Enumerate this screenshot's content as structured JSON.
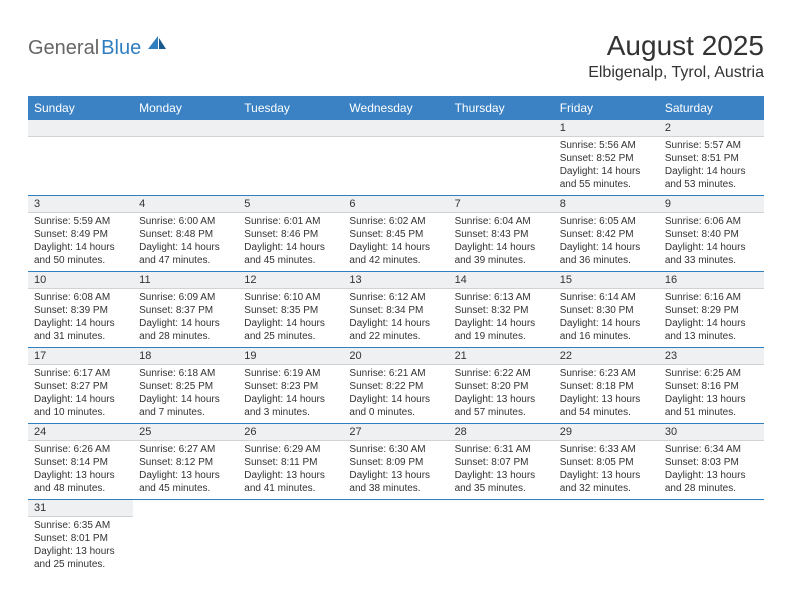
{
  "header": {
    "logo_general": "General",
    "logo_blue": "Blue",
    "month_title": "August 2025",
    "location": "Elbigenalp, Tyrol, Austria"
  },
  "colors": {
    "header_bg": "#3b82c4",
    "header_text": "#ffffff",
    "daynum_bg": "#eef0f2",
    "divider": "#2f7ec0",
    "text": "#333333",
    "logo_blue": "#2f7ec0"
  },
  "day_headers": [
    "Sunday",
    "Monday",
    "Tuesday",
    "Wednesday",
    "Thursday",
    "Friday",
    "Saturday"
  ],
  "weeks": [
    [
      null,
      null,
      null,
      null,
      null,
      {
        "n": "1",
        "sr": "5:56 AM",
        "ss": "8:52 PM",
        "dl": "14 hours and 55 minutes."
      },
      {
        "n": "2",
        "sr": "5:57 AM",
        "ss": "8:51 PM",
        "dl": "14 hours and 53 minutes."
      }
    ],
    [
      {
        "n": "3",
        "sr": "5:59 AM",
        "ss": "8:49 PM",
        "dl": "14 hours and 50 minutes."
      },
      {
        "n": "4",
        "sr": "6:00 AM",
        "ss": "8:48 PM",
        "dl": "14 hours and 47 minutes."
      },
      {
        "n": "5",
        "sr": "6:01 AM",
        "ss": "8:46 PM",
        "dl": "14 hours and 45 minutes."
      },
      {
        "n": "6",
        "sr": "6:02 AM",
        "ss": "8:45 PM",
        "dl": "14 hours and 42 minutes."
      },
      {
        "n": "7",
        "sr": "6:04 AM",
        "ss": "8:43 PM",
        "dl": "14 hours and 39 minutes."
      },
      {
        "n": "8",
        "sr": "6:05 AM",
        "ss": "8:42 PM",
        "dl": "14 hours and 36 minutes."
      },
      {
        "n": "9",
        "sr": "6:06 AM",
        "ss": "8:40 PM",
        "dl": "14 hours and 33 minutes."
      }
    ],
    [
      {
        "n": "10",
        "sr": "6:08 AM",
        "ss": "8:39 PM",
        "dl": "14 hours and 31 minutes."
      },
      {
        "n": "11",
        "sr": "6:09 AM",
        "ss": "8:37 PM",
        "dl": "14 hours and 28 minutes."
      },
      {
        "n": "12",
        "sr": "6:10 AM",
        "ss": "8:35 PM",
        "dl": "14 hours and 25 minutes."
      },
      {
        "n": "13",
        "sr": "6:12 AM",
        "ss": "8:34 PM",
        "dl": "14 hours and 22 minutes."
      },
      {
        "n": "14",
        "sr": "6:13 AM",
        "ss": "8:32 PM",
        "dl": "14 hours and 19 minutes."
      },
      {
        "n": "15",
        "sr": "6:14 AM",
        "ss": "8:30 PM",
        "dl": "14 hours and 16 minutes."
      },
      {
        "n": "16",
        "sr": "6:16 AM",
        "ss": "8:29 PM",
        "dl": "14 hours and 13 minutes."
      }
    ],
    [
      {
        "n": "17",
        "sr": "6:17 AM",
        "ss": "8:27 PM",
        "dl": "14 hours and 10 minutes."
      },
      {
        "n": "18",
        "sr": "6:18 AM",
        "ss": "8:25 PM",
        "dl": "14 hours and 7 minutes."
      },
      {
        "n": "19",
        "sr": "6:19 AM",
        "ss": "8:23 PM",
        "dl": "14 hours and 3 minutes."
      },
      {
        "n": "20",
        "sr": "6:21 AM",
        "ss": "8:22 PM",
        "dl": "14 hours and 0 minutes."
      },
      {
        "n": "21",
        "sr": "6:22 AM",
        "ss": "8:20 PM",
        "dl": "13 hours and 57 minutes."
      },
      {
        "n": "22",
        "sr": "6:23 AM",
        "ss": "8:18 PM",
        "dl": "13 hours and 54 minutes."
      },
      {
        "n": "23",
        "sr": "6:25 AM",
        "ss": "8:16 PM",
        "dl": "13 hours and 51 minutes."
      }
    ],
    [
      {
        "n": "24",
        "sr": "6:26 AM",
        "ss": "8:14 PM",
        "dl": "13 hours and 48 minutes."
      },
      {
        "n": "25",
        "sr": "6:27 AM",
        "ss": "8:12 PM",
        "dl": "13 hours and 45 minutes."
      },
      {
        "n": "26",
        "sr": "6:29 AM",
        "ss": "8:11 PM",
        "dl": "13 hours and 41 minutes."
      },
      {
        "n": "27",
        "sr": "6:30 AM",
        "ss": "8:09 PM",
        "dl": "13 hours and 38 minutes."
      },
      {
        "n": "28",
        "sr": "6:31 AM",
        "ss": "8:07 PM",
        "dl": "13 hours and 35 minutes."
      },
      {
        "n": "29",
        "sr": "6:33 AM",
        "ss": "8:05 PM",
        "dl": "13 hours and 32 minutes."
      },
      {
        "n": "30",
        "sr": "6:34 AM",
        "ss": "8:03 PM",
        "dl": "13 hours and 28 minutes."
      }
    ],
    [
      {
        "n": "31",
        "sr": "6:35 AM",
        "ss": "8:01 PM",
        "dl": "13 hours and 25 minutes."
      },
      null,
      null,
      null,
      null,
      null,
      null
    ]
  ],
  "labels": {
    "sunrise": "Sunrise: ",
    "sunset": "Sunset: ",
    "daylight": "Daylight: "
  }
}
